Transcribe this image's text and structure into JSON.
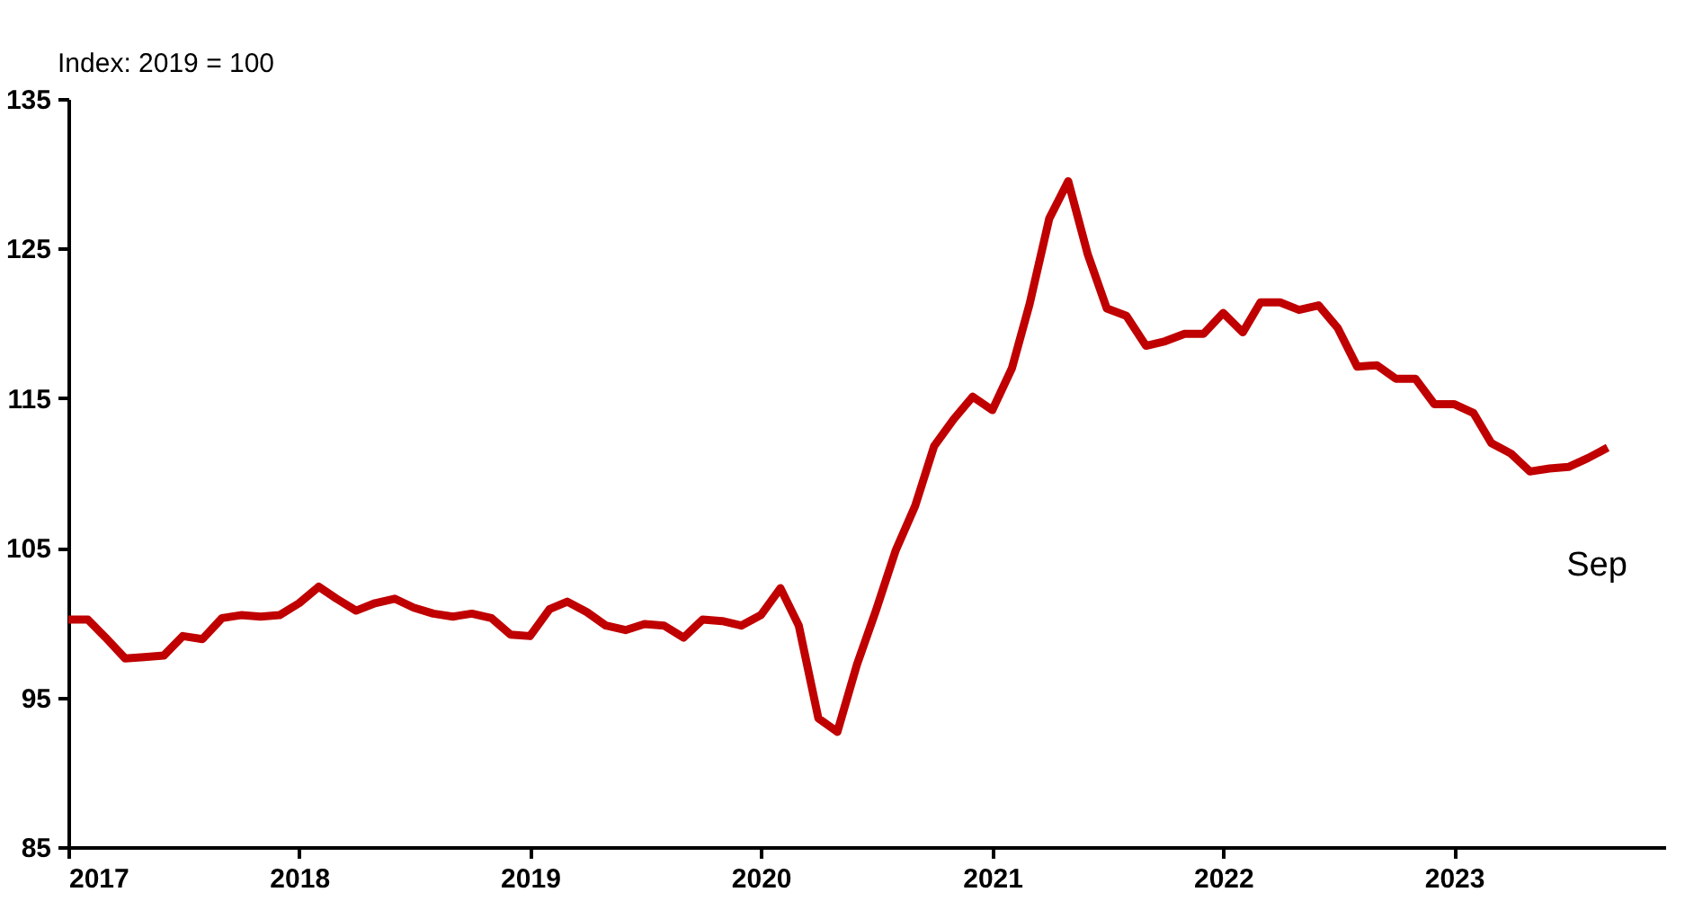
{
  "chart_data": {
    "type": "line",
    "ylabel": "Index: 2019 = 100",
    "annotations": [
      "Sep"
    ],
    "x": [
      "2017-01",
      "2017-02",
      "2017-03",
      "2017-04",
      "2017-05",
      "2017-06",
      "2017-07",
      "2017-08",
      "2017-09",
      "2017-10",
      "2017-11",
      "2017-12",
      "2018-01",
      "2018-02",
      "2018-03",
      "2018-04",
      "2018-05",
      "2018-06",
      "2018-07",
      "2018-08",
      "2018-09",
      "2018-10",
      "2018-11",
      "2018-12",
      "2019-01",
      "2019-02",
      "2019-03",
      "2019-04",
      "2019-05",
      "2019-06",
      "2019-07",
      "2019-08",
      "2019-09",
      "2019-10",
      "2019-11",
      "2019-12",
      "2020-01",
      "2020-02",
      "2020-03",
      "2020-04",
      "2020-05",
      "2020-06",
      "2020-07",
      "2020-08",
      "2020-09",
      "2020-10",
      "2020-11",
      "2020-12",
      "2021-01",
      "2021-02",
      "2021-03",
      "2021-04",
      "2021-05",
      "2021-06",
      "2021-07",
      "2021-08",
      "2021-09",
      "2021-10",
      "2021-11",
      "2021-12",
      "2022-01",
      "2022-02",
      "2022-03",
      "2022-04",
      "2022-05",
      "2022-06",
      "2022-07",
      "2022-08",
      "2022-09",
      "2022-10",
      "2022-11",
      "2022-12",
      "2023-01",
      "2023-02",
      "2023-03",
      "2023-04",
      "2023-05",
      "2023-06",
      "2023-07",
      "2023-08",
      "2023-09"
    ],
    "series": [
      {
        "color": "#c00000",
        "values": [
          100.2,
          100.2,
          99.0,
          97.6,
          97.7,
          97.8,
          99.1,
          98.9,
          100.3,
          100.5,
          100.4,
          100.5,
          101.3,
          102.4,
          101.6,
          100.8,
          101.3,
          101.6,
          101.0,
          100.6,
          100.4,
          100.6,
          100.3,
          99.2,
          99.1,
          100.9,
          101.4,
          100.7,
          99.8,
          99.5,
          99.9,
          99.8,
          99.0,
          100.2,
          100.1,
          99.8,
          100.5,
          102.3,
          99.8,
          93.6,
          92.7,
          97.2,
          100.8,
          104.8,
          107.8,
          111.8,
          113.6,
          115.1,
          114.2,
          117.0,
          121.3,
          127.0,
          129.5,
          124.6,
          121.0,
          120.5,
          118.5,
          118.8,
          119.3,
          119.3,
          120.7,
          119.4,
          121.4,
          121.4,
          120.9,
          121.2,
          119.7,
          117.1,
          117.2,
          116.3,
          116.3,
          114.6,
          114.6,
          114.0,
          112.0,
          111.3,
          110.1,
          110.3,
          110.4,
          111.0,
          111.7
        ]
      }
    ],
    "xlim": [
      "2017-01",
      "2023-12"
    ],
    "xticks": [
      "2017",
      "2018",
      "2019",
      "2020",
      "2021",
      "2022",
      "2023"
    ],
    "ylim": [
      85,
      135
    ],
    "yticks": [
      85,
      95,
      105,
      115,
      125,
      135
    ],
    "grid": false,
    "marker": "none",
    "line_style": "solid"
  }
}
